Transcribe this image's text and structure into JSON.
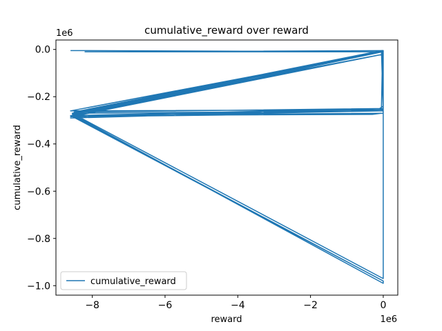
{
  "chart_data": {
    "type": "line",
    "title": "cumulative_reward over reward",
    "xlabel": "reward",
    "ylabel": "cumulative_reward",
    "x_offset_label": "1e6",
    "y_offset_label": "1e6",
    "xlim": [
      -9.0,
      0.4
    ],
    "ylim": [
      -1.04,
      0.04
    ],
    "x_ticks": [
      -8,
      -6,
      -4,
      -2,
      0
    ],
    "x_tick_labels": [
      "−8",
      "−6",
      "−4",
      "−2",
      "0"
    ],
    "y_ticks": [
      0.0,
      -0.2,
      -0.4,
      -0.6,
      -0.8,
      -1.0
    ],
    "y_tick_labels": [
      "0.0",
      "−0.2",
      "−0.4",
      "−0.6",
      "−0.8",
      "−1.0"
    ],
    "grid": false,
    "legend": "lower-left",
    "series": [
      {
        "name": "cumulative_reward",
        "color": "#1f77b4",
        "x": [
          -8.6,
          -8.2,
          -0.05,
          0.0,
          0.0,
          -0.1,
          0.0,
          -8.6,
          -0.05,
          0.0,
          -8.55,
          0.0,
          -0.1,
          -8.55,
          0.0,
          0.0,
          -8.5,
          0.0,
          -8.6,
          -0.05,
          -0.02,
          0.0,
          0.0,
          -8.5,
          -0.05,
          0.0,
          0.0,
          -8.45,
          -0.02,
          0.0,
          0.0,
          -8.6,
          -0.05,
          -0.3,
          -8.55,
          -0.02,
          0.0,
          -8.55,
          -0.02,
          0.0,
          0.0,
          -8.5,
          -0.05,
          0.0,
          -8.55,
          -0.02,
          0.0,
          -8.5,
          -0.02,
          0.0,
          -8.6,
          0.0,
          0.0,
          -8.55,
          0.0,
          0.0,
          -8.5,
          -0.05,
          0.0,
          -0.02,
          -8.2,
          0.0,
          0.0
        ],
        "y": [
          -0.005,
          -0.005,
          -0.01,
          -0.005,
          -0.24,
          -0.25,
          -0.255,
          -0.26,
          -0.01,
          -0.02,
          -0.27,
          -0.26,
          -0.25,
          -0.28,
          -0.98,
          -0.99,
          -0.28,
          -0.255,
          -0.29,
          -0.25,
          -0.01,
          -0.005,
          -0.97,
          -0.275,
          -0.005,
          -0.02,
          -0.26,
          -0.27,
          -0.01,
          -0.25,
          -0.02,
          -0.285,
          -0.27,
          -0.275,
          -0.28,
          -0.005,
          -0.26,
          -0.27,
          -0.01,
          -0.03,
          -0.25,
          -0.265,
          -0.005,
          -0.26,
          -0.285,
          -0.01,
          -0.02,
          -0.27,
          -0.005,
          -0.27,
          -0.28,
          -0.98,
          -0.99,
          -0.275,
          -0.02,
          -0.25,
          -0.28,
          -0.005,
          -0.03,
          -0.01,
          -0.01,
          -0.005,
          -0.01
        ]
      }
    ]
  }
}
